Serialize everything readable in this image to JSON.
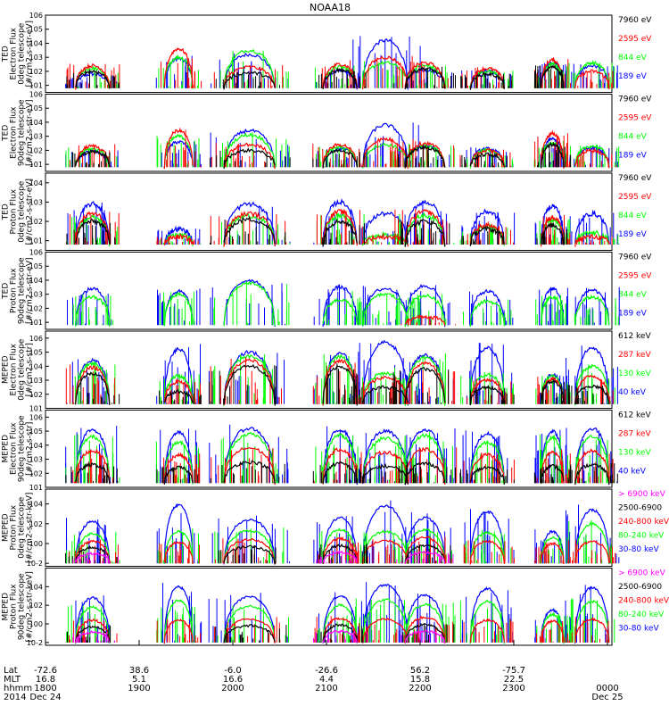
{
  "title": "NOAA18",
  "colors": {
    "black": "#000000",
    "red": "#ff0000",
    "green": "#00ff00",
    "blue": "#0000ff",
    "magenta": "#ff00ff"
  },
  "chart_data": [
    {
      "type": "line",
      "ylabel": [
        "TED",
        "Electron Flux",
        "0deg telescope",
        "[#/cm2-s-str-eV]"
      ],
      "ytick_labels": [
        "10^1",
        "10^2",
        "10^3",
        "10^4",
        "10^5",
        "10^6"
      ],
      "ylim_log10": [
        0.5,
        6
      ],
      "legend": [
        {
          "label": "7960 eV",
          "color": "black"
        },
        {
          "label": "2595 eV",
          "color": "red"
        },
        {
          "label": "844 eV",
          "color": "green"
        },
        {
          "label": "189 eV",
          "color": "blue"
        }
      ],
      "series": [
        {
          "name": "7960 eV",
          "color": "black",
          "peak_log10": [
            2.0,
            0,
            1.9,
            2.1,
            0,
            2.2,
            1.8,
            2.3,
            0
          ]
        },
        {
          "name": "2595 eV",
          "color": "red",
          "peak_log10": [
            2.4,
            3.6,
            2.3,
            2.5,
            3.0,
            2.6,
            2.2,
            2.8,
            2.0
          ]
        },
        {
          "name": "844 eV",
          "color": "green",
          "peak_log10": [
            2.2,
            3.0,
            3.5,
            2.3,
            2.6,
            2.4,
            2.0,
            2.5,
            2.6
          ]
        },
        {
          "name": "189 eV",
          "color": "blue",
          "peak_log10": [
            1.8,
            2.9,
            3.2,
            2.0,
            4.2,
            2.1,
            2.0,
            2.6,
            2.4
          ]
        }
      ]
    },
    {
      "type": "line",
      "ylabel": [
        "TED",
        "Electron Flux",
        "90deg telescope",
        "[#/cm2-s-str-eV]"
      ],
      "ytick_labels": [
        "10^1",
        "10^2",
        "10^3",
        "10^4",
        "10^5",
        "10^6"
      ],
      "ylim_log10": [
        0.5,
        6
      ],
      "legend": [
        {
          "label": "7960 eV",
          "color": "black"
        },
        {
          "label": "2595 eV",
          "color": "red"
        },
        {
          "label": "844 eV",
          "color": "green"
        },
        {
          "label": "189 eV",
          "color": "blue"
        }
      ],
      "series": [
        {
          "name": "7960 eV",
          "color": "black",
          "peak_log10": [
            1.9,
            0,
            2.0,
            2.0,
            0,
            2.2,
            1.7,
            2.4,
            0
          ]
        },
        {
          "name": "2595 eV",
          "color": "red",
          "peak_log10": [
            2.3,
            3.4,
            2.4,
            2.4,
            2.8,
            2.5,
            2.0,
            3.2,
            2.0
          ]
        },
        {
          "name": "844 eV",
          "color": "green",
          "peak_log10": [
            2.1,
            3.0,
            3.1,
            2.2,
            2.4,
            2.3,
            2.0,
            2.5,
            2.3
          ]
        },
        {
          "name": "189 eV",
          "color": "blue",
          "peak_log10": [
            1.9,
            2.6,
            3.4,
            2.1,
            3.8,
            2.3,
            2.1,
            2.8,
            2.2
          ]
        }
      ]
    },
    {
      "type": "line",
      "ylabel": [
        "TED",
        "Proton Flux",
        "0deg telescope",
        "[#/cm2-s-str-eV]"
      ],
      "ytick_labels": [
        "10^1",
        "10^2",
        "10^3",
        "10^4"
      ],
      "ylim_log10": [
        0.5,
        4.5
      ],
      "legend": [
        {
          "label": "7960 eV",
          "color": "black"
        },
        {
          "label": "2595 eV",
          "color": "red"
        },
        {
          "label": "844 eV",
          "color": "green"
        },
        {
          "label": "189 eV",
          "color": "blue"
        }
      ],
      "series": [
        {
          "name": "7960 eV",
          "color": "black",
          "peak_log10": [
            2.0,
            0,
            2.1,
            2.0,
            0,
            2.0,
            1.6,
            1.8,
            0
          ]
        },
        {
          "name": "2595 eV",
          "color": "red",
          "peak_log10": [
            2.4,
            1.2,
            2.4,
            2.5,
            1.2,
            2.5,
            1.8,
            2.2,
            1.2
          ]
        },
        {
          "name": "844 eV",
          "color": "green",
          "peak_log10": [
            2.2,
            1.3,
            2.3,
            2.3,
            1.3,
            2.3,
            1.7,
            2.1,
            1.4
          ]
        },
        {
          "name": "189 eV",
          "color": "blue",
          "peak_log10": [
            2.9,
            1.6,
            2.9,
            3.0,
            2.4,
            3.0,
            2.5,
            2.8,
            2.4
          ]
        }
      ]
    },
    {
      "type": "line",
      "ylabel": [
        "TED",
        "Proton Flux",
        "90deg telescope",
        "[#/cm2-s-str-eV]"
      ],
      "ytick_labels": [
        "10^1",
        "10^2",
        "10^3",
        "10^4",
        "10^5",
        "10^6"
      ],
      "ylim_log10": [
        0.5,
        6
      ],
      "legend": [
        {
          "label": "7960 eV",
          "color": "black"
        },
        {
          "label": "2595 eV",
          "color": "red"
        },
        {
          "label": "844 eV",
          "color": "green"
        },
        {
          "label": "189 eV",
          "color": "blue"
        }
      ],
      "series": [
        {
          "name": "7960 eV",
          "color": "black",
          "peak_log10": [
            0,
            0,
            0,
            0,
            0,
            0,
            0,
            0,
            0
          ]
        },
        {
          "name": "2595 eV",
          "color": "red",
          "peak_log10": [
            0,
            0,
            0,
            0,
            0,
            1.4,
            0,
            0,
            0
          ]
        },
        {
          "name": "844 eV",
          "color": "green",
          "peak_log10": [
            2.8,
            3.0,
            3.8,
            2.6,
            3.0,
            2.9,
            2.5,
            2.8,
            2.8
          ]
        },
        {
          "name": "189 eV",
          "color": "blue",
          "peak_log10": [
            3.4,
            3.2,
            4.0,
            3.5,
            3.4,
            3.6,
            3.2,
            3.4,
            3.3
          ]
        }
      ]
    },
    {
      "type": "line",
      "ylabel": [
        "MEPED",
        "Electron Flux",
        "0deg telescope",
        "[#/cm2-s-str]"
      ],
      "ytick_labels": [
        "10^1",
        "10^2",
        "10^3",
        "10^4",
        "10^5",
        "10^6"
      ],
      "ylim_log10": [
        1,
        6.5
      ],
      "legend": [
        {
          "label": "612 keV",
          "color": "black"
        },
        {
          "label": "287 keV",
          "color": "red"
        },
        {
          "label": "130 keV",
          "color": "green"
        },
        {
          "label": "40 keV",
          "color": "blue"
        }
      ],
      "series": [
        {
          "name": "612 keV",
          "color": "black",
          "peak_log10": [
            3.5,
            2.2,
            4.0,
            4.0,
            2.5,
            3.8,
            2.5,
            2.9,
            2.6
          ]
        },
        {
          "name": "287 keV",
          "color": "red",
          "peak_log10": [
            3.9,
            2.9,
            4.4,
            4.4,
            3.2,
            4.2,
            3.0,
            3.1,
            3.3
          ]
        },
        {
          "name": "130 keV",
          "color": "green",
          "peak_log10": [
            4.2,
            3.3,
            4.7,
            4.7,
            3.5,
            4.6,
            3.4,
            3.3,
            4.0
          ]
        },
        {
          "name": "40 keV",
          "color": "blue",
          "peak_log10": [
            4.4,
            5.2,
            5.0,
            4.9,
            5.7,
            4.8,
            5.3,
            3.4,
            5.3
          ]
        }
      ]
    },
    {
      "type": "line",
      "ylabel": [
        "MEPED",
        "Electron Flux",
        "90deg telescope",
        "[#/cm2-s-str]"
      ],
      "ytick_labels": [
        "10^1",
        "10^2",
        "10^3",
        "10^4",
        "10^5",
        "10^6"
      ],
      "ylim_log10": [
        1,
        6.5
      ],
      "legend": [
        {
          "label": "612 keV",
          "color": "black"
        },
        {
          "label": "287 keV",
          "color": "red"
        },
        {
          "label": "130 keV",
          "color": "green"
        },
        {
          "label": "40 keV",
          "color": "blue"
        }
      ],
      "series": [
        {
          "name": "612 keV",
          "color": "black",
          "peak_log10": [
            2.6,
            2.4,
            2.8,
            2.7,
            2.5,
            2.7,
            2.4,
            2.5,
            2.6
          ]
        },
        {
          "name": "287 keV",
          "color": "red",
          "peak_log10": [
            3.6,
            3.3,
            3.8,
            3.7,
            3.5,
            3.7,
            3.3,
            3.5,
            3.6
          ]
        },
        {
          "name": "130 keV",
          "color": "green",
          "peak_log10": [
            4.6,
            4.2,
            4.8,
            4.7,
            4.5,
            4.7,
            4.2,
            4.5,
            4.6
          ]
        },
        {
          "name": "40 keV",
          "color": "blue",
          "peak_log10": [
            5.1,
            4.9,
            5.2,
            5.1,
            5.0,
            5.1,
            4.8,
            5.0,
            5.2
          ]
        }
      ]
    },
    {
      "type": "line",
      "ylabel": [
        "MEPED",
        "Proton Flux",
        "0deg telescope",
        "[#/cm2-s-str-keV]"
      ],
      "ytick_labels": [
        "10^-2",
        "10^0",
        "10^2",
        "10^4"
      ],
      "ylim_log10": [
        -2.3,
        5.5
      ],
      "legend": [
        {
          "label": "> 6900 keV",
          "color": "magenta"
        },
        {
          "label": "2500-6900",
          "color": "black"
        },
        {
          "label": "240-800 keV",
          "color": "red"
        },
        {
          "label": "80-240 keV",
          "color": "green"
        },
        {
          "label": "30-80 keV",
          "color": "blue"
        }
      ],
      "series": [
        {
          "name": "> 6900 keV",
          "color": "magenta",
          "peak_log10": [
            -1.0,
            -3,
            -3,
            -0.9,
            -3,
            -0.9,
            -3,
            -3,
            -3
          ]
        },
        {
          "name": "2500-6900",
          "color": "black",
          "peak_log10": [
            -0.4,
            -3,
            -0.3,
            -0.2,
            -3,
            -0.2,
            -3,
            -3,
            -3
          ]
        },
        {
          "name": "240-800 keV",
          "color": "red",
          "peak_log10": [
            0.2,
            0.1,
            0.4,
            0.5,
            0.3,
            0.6,
            0.2,
            0.0,
            0.2
          ]
        },
        {
          "name": "80-240 keV",
          "color": "green",
          "peak_log10": [
            1.0,
            1.2,
            1.3,
            1.4,
            1.2,
            1.4,
            1.1,
            0.6,
            2.0
          ]
        },
        {
          "name": "30-80 keV",
          "color": "blue",
          "peak_log10": [
            2.2,
            3.9,
            2.4,
            2.6,
            3.8,
            2.6,
            3.2,
            1.2,
            3.4
          ]
        }
      ]
    },
    {
      "type": "line",
      "ylabel": [
        "MEPED",
        "Proton Flux",
        "90deg telescope",
        "[#/cm2-s-str-keV]"
      ],
      "ytick_labels": [
        "10^-2",
        "10^0",
        "10^2",
        "10^4"
      ],
      "ylim_log10": [
        -2.3,
        6
      ],
      "legend": [
        {
          "label": "> 6900 keV",
          "color": "magenta"
        },
        {
          "label": "2500-6900",
          "color": "black"
        },
        {
          "label": "240-800 keV",
          "color": "red"
        },
        {
          "label": "80-240 keV",
          "color": "green"
        },
        {
          "label": "30-80 keV",
          "color": "blue"
        }
      ],
      "series": [
        {
          "name": "> 6900 keV",
          "color": "magenta",
          "peak_log10": [
            -0.9,
            -3,
            -3,
            -0.8,
            -3,
            -0.8,
            -3,
            -3,
            -3
          ]
        },
        {
          "name": "2500-6900",
          "color": "black",
          "peak_log10": [
            -0.3,
            -3,
            -0.2,
            -0.1,
            -3,
            -0.1,
            -3,
            -3,
            -3
          ]
        },
        {
          "name": "240-800 keV",
          "color": "red",
          "peak_log10": [
            0.4,
            0.4,
            0.5,
            0.6,
            0.5,
            0.7,
            0.4,
            0.3,
            0.5
          ]
        },
        {
          "name": "80-240 keV",
          "color": "green",
          "peak_log10": [
            1.8,
            2.5,
            1.9,
            2.0,
            2.6,
            2.1,
            2.4,
            1.0,
            2.4
          ]
        },
        {
          "name": "30-80 keV",
          "color": "blue",
          "peak_log10": [
            2.8,
            4.0,
            2.9,
            3.0,
            4.2,
            3.1,
            3.8,
            1.5,
            3.9
          ]
        }
      ]
    }
  ],
  "xaxis": {
    "row_labels": [
      "Lat",
      "MLT",
      "hhmm",
      "2014"
    ],
    "columns": [
      {
        "values": [
          "-72.6",
          "16.8",
          "1800",
          "Dec 24"
        ]
      },
      {
        "values": [
          "38.6",
          "5.1",
          "1900",
          ""
        ]
      },
      {
        "values": [
          "-6.0",
          "16.6",
          "2000",
          ""
        ]
      },
      {
        "values": [
          "-26.6",
          "4.4",
          "2100",
          ""
        ]
      },
      {
        "values": [
          "56.2",
          "15.8",
          "2200",
          ""
        ]
      },
      {
        "values": [
          "-75.7",
          "22.5",
          "2300",
          ""
        ]
      },
      {
        "values": [
          "",
          "",
          "0000",
          "Dec 25"
        ]
      }
    ]
  }
}
